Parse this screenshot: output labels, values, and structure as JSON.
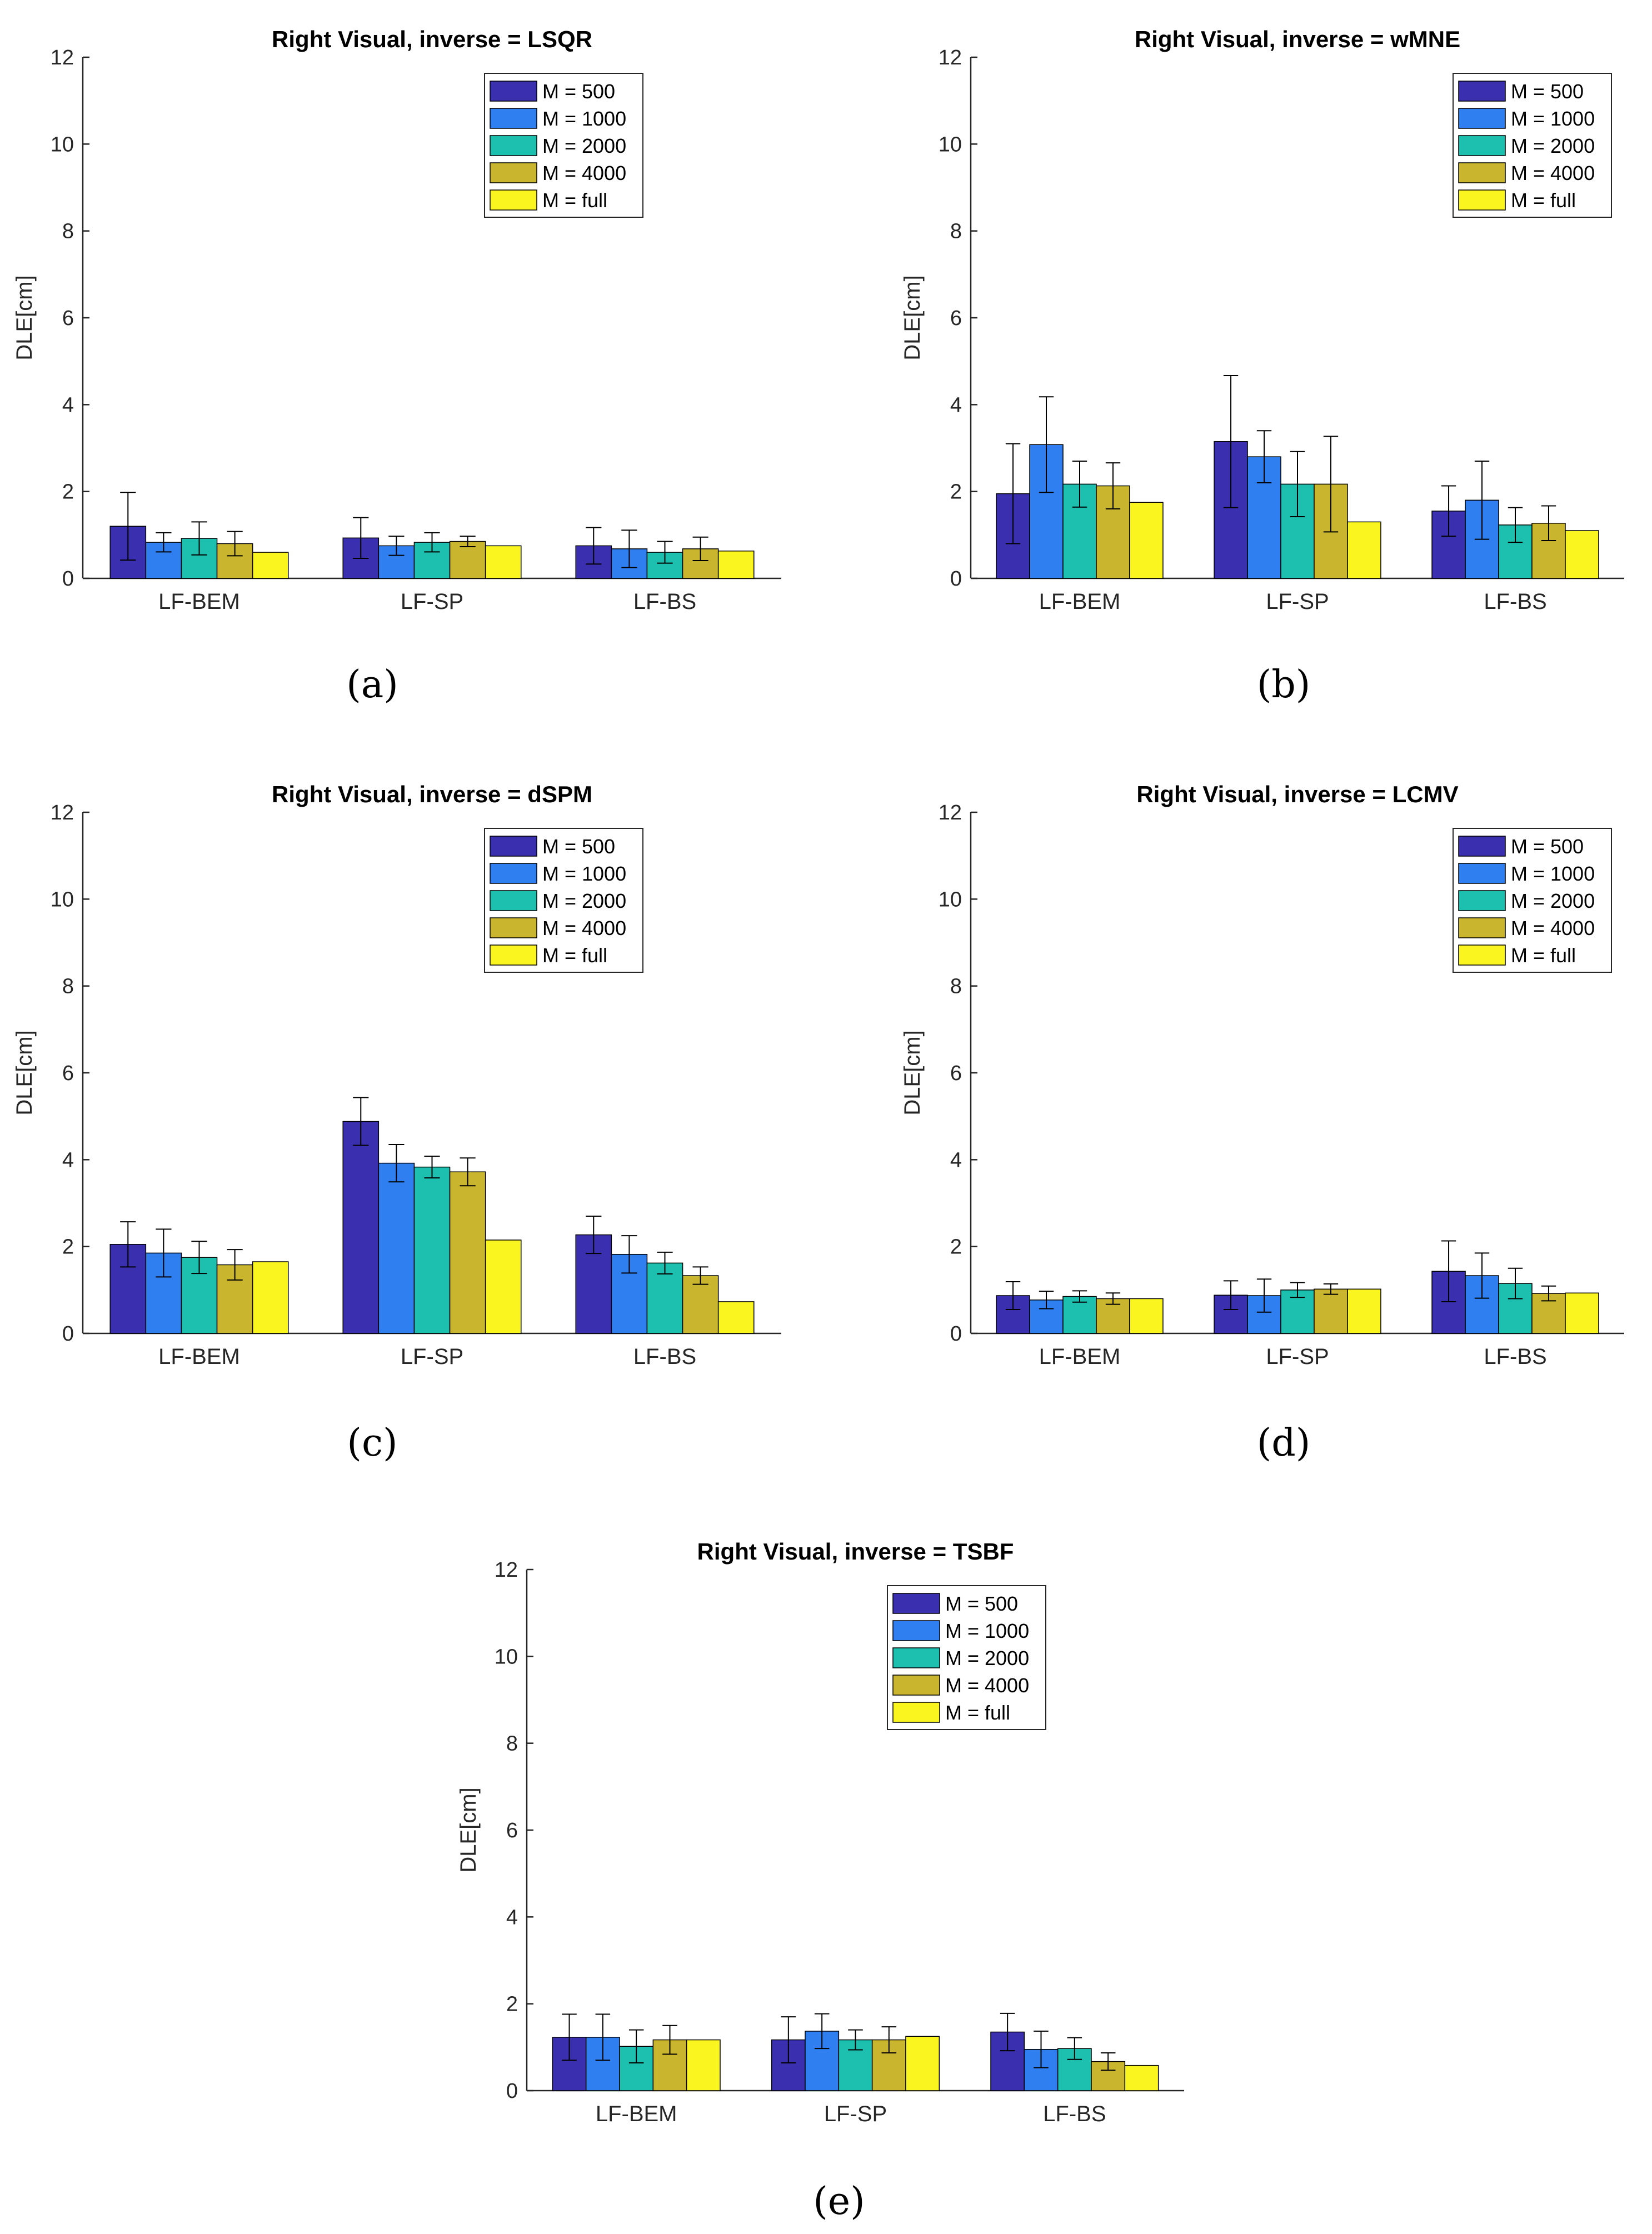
{
  "figure": {
    "captions": [
      "(a)",
      "(b)",
      "(c)",
      "(d)",
      "(e)"
    ]
  },
  "colors": {
    "series": [
      "#3A2FAE",
      "#2F7FF0",
      "#1DBFAF",
      "#C9B62E",
      "#FAF51E"
    ]
  },
  "chart_data": [
    {
      "type": "bar",
      "title": "Right Visual, inverse = LSQR",
      "ylabel": "DLE[cm]",
      "xlabel": "",
      "ylim": [
        0,
        12
      ],
      "yticks": [
        0,
        2,
        4,
        6,
        8,
        10,
        12
      ],
      "categories": [
        "LF-BEM",
        "LF-SP",
        "LF-BS"
      ],
      "series": [
        {
          "name": "M = 500",
          "values": [
            1.2,
            0.93,
            0.75
          ],
          "errors": [
            0.78,
            0.47,
            0.42
          ]
        },
        {
          "name": "M = 1000",
          "values": [
            0.83,
            0.75,
            0.68
          ],
          "errors": [
            0.22,
            0.22,
            0.43
          ]
        },
        {
          "name": "M = 2000",
          "values": [
            0.92,
            0.83,
            0.6
          ],
          "errors": [
            0.38,
            0.22,
            0.25
          ]
        },
        {
          "name": "M = 4000",
          "values": [
            0.8,
            0.85,
            0.68
          ],
          "errors": [
            0.28,
            0.12,
            0.27
          ]
        },
        {
          "name": "M = full",
          "values": [
            0.6,
            0.75,
            0.63
          ],
          "errors": [
            0,
            0,
            0
          ]
        }
      ]
    },
    {
      "type": "bar",
      "title": "Right Visual, inverse = wMNE",
      "ylabel": "DLE[cm]",
      "xlabel": "",
      "ylim": [
        0,
        12
      ],
      "yticks": [
        0,
        2,
        4,
        6,
        8,
        10,
        12
      ],
      "categories": [
        "LF-BEM",
        "LF-SP",
        "LF-BS"
      ],
      "series": [
        {
          "name": "M = 500",
          "values": [
            1.95,
            3.15,
            1.55
          ],
          "errors": [
            1.15,
            1.52,
            0.58
          ]
        },
        {
          "name": "M = 1000",
          "values": [
            3.08,
            2.8,
            1.8
          ],
          "errors": [
            1.1,
            0.6,
            0.9
          ]
        },
        {
          "name": "M = 2000",
          "values": [
            2.17,
            2.17,
            1.23
          ],
          "errors": [
            0.53,
            0.75,
            0.4
          ]
        },
        {
          "name": "M = 4000",
          "values": [
            2.13,
            2.17,
            1.27
          ],
          "errors": [
            0.53,
            1.1,
            0.4
          ]
        },
        {
          "name": "M = full",
          "values": [
            1.75,
            1.3,
            1.1
          ],
          "errors": [
            0,
            0,
            0
          ]
        }
      ]
    },
    {
      "type": "bar",
      "title": "Right Visual, inverse = dSPM",
      "ylabel": "DLE[cm]",
      "xlabel": "",
      "ylim": [
        0,
        12
      ],
      "yticks": [
        0,
        2,
        4,
        6,
        8,
        10,
        12
      ],
      "categories": [
        "LF-BEM",
        "LF-SP",
        "LF-BS"
      ],
      "series": [
        {
          "name": "M = 500",
          "values": [
            2.05,
            4.88,
            2.27
          ],
          "errors": [
            0.52,
            0.55,
            0.43
          ]
        },
        {
          "name": "M = 1000",
          "values": [
            1.85,
            3.92,
            1.82
          ],
          "errors": [
            0.55,
            0.43,
            0.43
          ]
        },
        {
          "name": "M = 2000",
          "values": [
            1.75,
            3.83,
            1.62
          ],
          "errors": [
            0.37,
            0.25,
            0.25
          ]
        },
        {
          "name": "M = 4000",
          "values": [
            1.58,
            3.72,
            1.33
          ],
          "errors": [
            0.35,
            0.32,
            0.2
          ]
        },
        {
          "name": "M = full",
          "values": [
            1.65,
            2.15,
            0.73
          ],
          "errors": [
            0,
            0,
            0
          ]
        }
      ]
    },
    {
      "type": "bar",
      "title": "Right Visual, inverse = LCMV",
      "ylabel": "DLE[cm]",
      "xlabel": "",
      "ylim": [
        0,
        12
      ],
      "yticks": [
        0,
        2,
        4,
        6,
        8,
        10,
        12
      ],
      "categories": [
        "LF-BEM",
        "LF-SP",
        "LF-BS"
      ],
      "series": [
        {
          "name": "M = 500",
          "values": [
            0.87,
            0.88,
            1.43
          ],
          "errors": [
            0.32,
            0.33,
            0.7
          ]
        },
        {
          "name": "M = 1000",
          "values": [
            0.77,
            0.87,
            1.33
          ],
          "errors": [
            0.2,
            0.38,
            0.52
          ]
        },
        {
          "name": "M = 2000",
          "values": [
            0.85,
            1.0,
            1.15
          ],
          "errors": [
            0.13,
            0.17,
            0.35
          ]
        },
        {
          "name": "M = 4000",
          "values": [
            0.8,
            1.02,
            0.92
          ],
          "errors": [
            0.13,
            0.12,
            0.17
          ]
        },
        {
          "name": "M = full",
          "values": [
            0.8,
            1.02,
            0.93
          ],
          "errors": [
            0,
            0,
            0
          ]
        }
      ]
    },
    {
      "type": "bar",
      "title": "Right Visual, inverse = TSBF",
      "ylabel": "DLE[cm]",
      "xlabel": "",
      "ylim": [
        0,
        12
      ],
      "yticks": [
        0,
        2,
        4,
        6,
        8,
        10,
        12
      ],
      "categories": [
        "LF-BEM",
        "LF-SP",
        "LF-BS"
      ],
      "series": [
        {
          "name": "M = 500",
          "values": [
            1.23,
            1.17,
            1.35
          ],
          "errors": [
            0.53,
            0.53,
            0.43
          ]
        },
        {
          "name": "M = 1000",
          "values": [
            1.23,
            1.37,
            0.95
          ],
          "errors": [
            0.53,
            0.4,
            0.42
          ]
        },
        {
          "name": "M = 2000",
          "values": [
            1.02,
            1.17,
            0.97
          ],
          "errors": [
            0.38,
            0.23,
            0.25
          ]
        },
        {
          "name": "M = 4000",
          "values": [
            1.17,
            1.17,
            0.67
          ],
          "errors": [
            0.33,
            0.3,
            0.2
          ]
        },
        {
          "name": "M = full",
          "values": [
            1.17,
            1.25,
            0.58
          ],
          "errors": [
            0,
            0,
            0
          ]
        }
      ]
    }
  ]
}
